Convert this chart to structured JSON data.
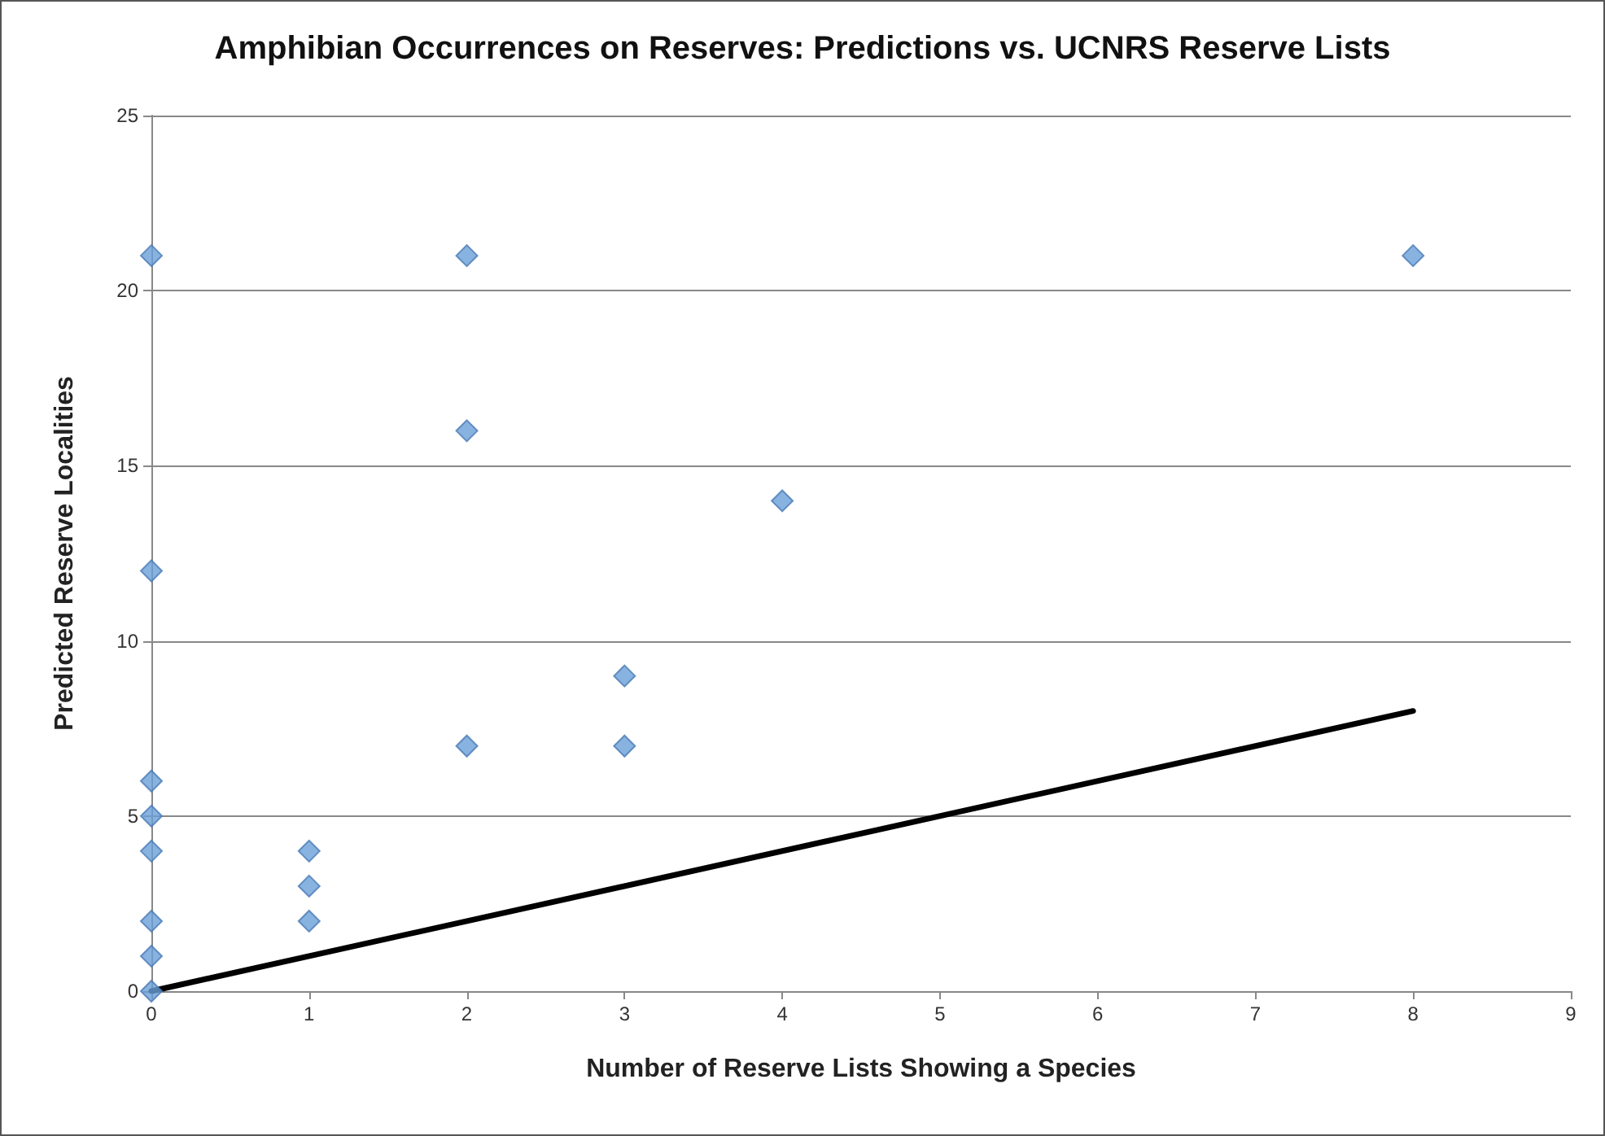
{
  "chart_data": {
    "type": "scatter",
    "title": "Amphibian Occurrences on Reserves: Predictions vs. UCNRS Reserve Lists",
    "xlabel": "Number of Reserve Lists Showing a Species",
    "ylabel": "Predicted Reserve Localities",
    "series": [
      {
        "color": "#6a9fd8",
        "x": [
          0,
          0,
          0,
          0,
          0,
          0,
          0,
          0,
          1,
          1,
          1,
          2,
          2,
          2,
          3,
          3,
          4,
          8
        ],
        "values": [
          21,
          12,
          6,
          5,
          4,
          2,
          1,
          0,
          4,
          3,
          2,
          21,
          16,
          7,
          9,
          7,
          14,
          21
        ],
        "marker": "diamond"
      },
      {
        "type": "line",
        "color": "#000000",
        "x": [
          0,
          8
        ],
        "values": [
          0,
          8
        ],
        "marker": "none",
        "line_style": "solid"
      }
    ],
    "xlim": [
      0,
      9
    ],
    "xticks": [
      0,
      1,
      2,
      3,
      4,
      5,
      6,
      7,
      8,
      9
    ],
    "ylim": [
      0,
      25
    ],
    "yticks": [
      0,
      5,
      10,
      15,
      20,
      25
    ],
    "grid": "y"
  }
}
